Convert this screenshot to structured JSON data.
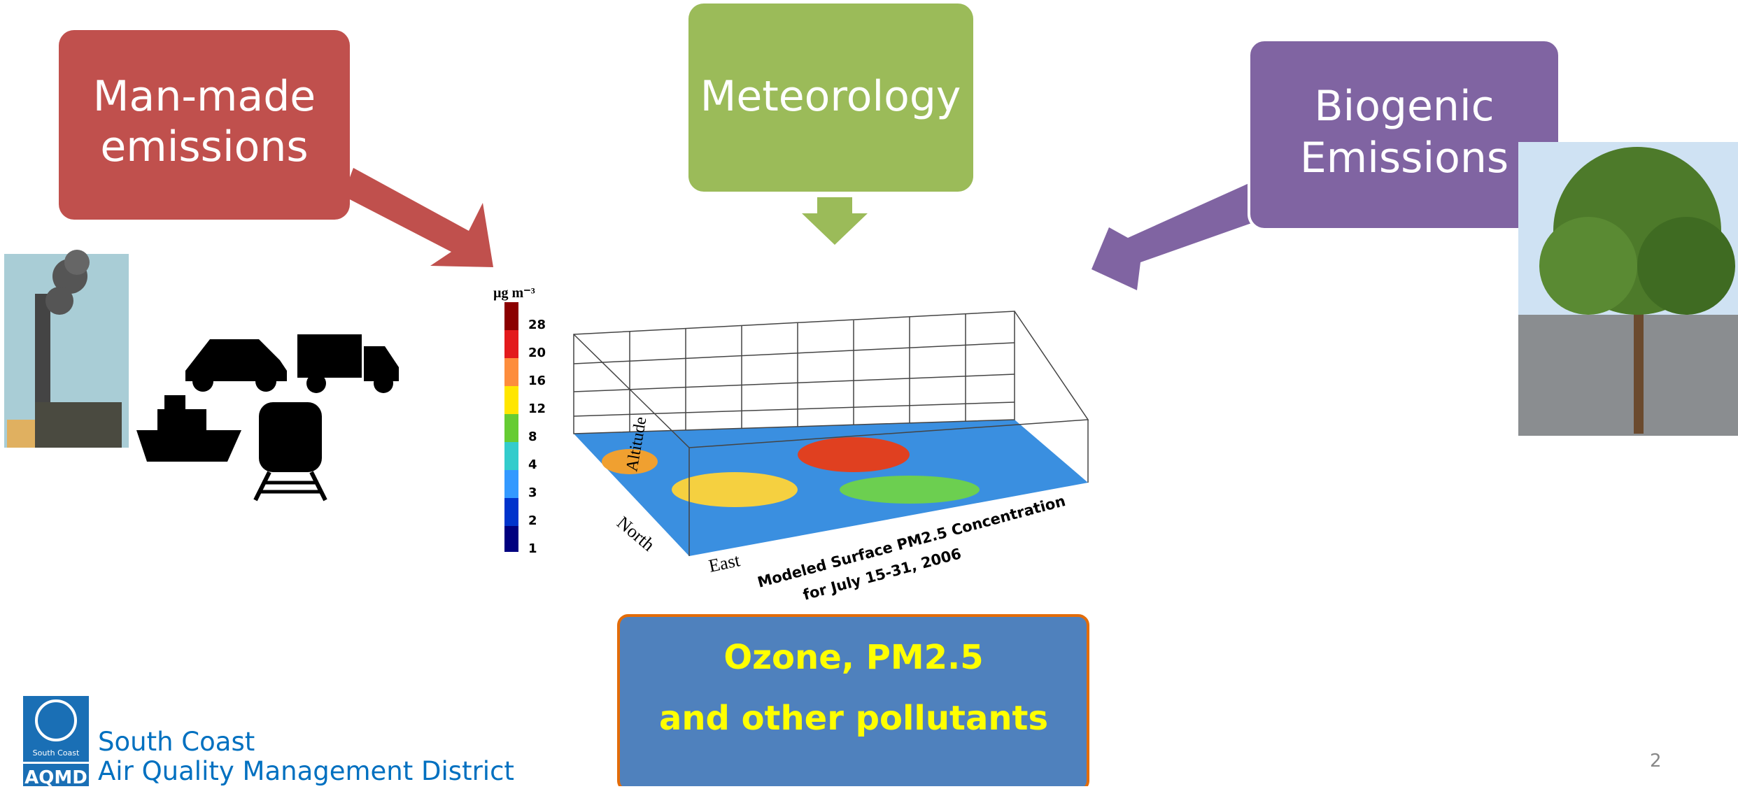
{
  "boxes": {
    "man_made": [
      "Man-made",
      "emissions"
    ],
    "meteorology": [
      "Meteorology"
    ],
    "biogenic": [
      "Biogenic",
      "Emissions"
    ]
  },
  "output": [
    "Ozone, PM2.5",
    "and other pollutants"
  ],
  "figure": {
    "unit": "µg m⁻³",
    "scale": [
      "28",
      "20",
      "16",
      "12",
      "8",
      "4",
      "3",
      "2",
      "1"
    ],
    "altitude": "Altitude",
    "north": "North",
    "east": "East",
    "caption": [
      "Modeled Surface PM2.5 Concentration",
      "for July 15-31, 2006"
    ]
  },
  "logo": {
    "badge": "South Coast",
    "abbr": "AQMD",
    "name": [
      "South Coast",
      "Air Quality Management District"
    ]
  },
  "page_number": "2"
}
